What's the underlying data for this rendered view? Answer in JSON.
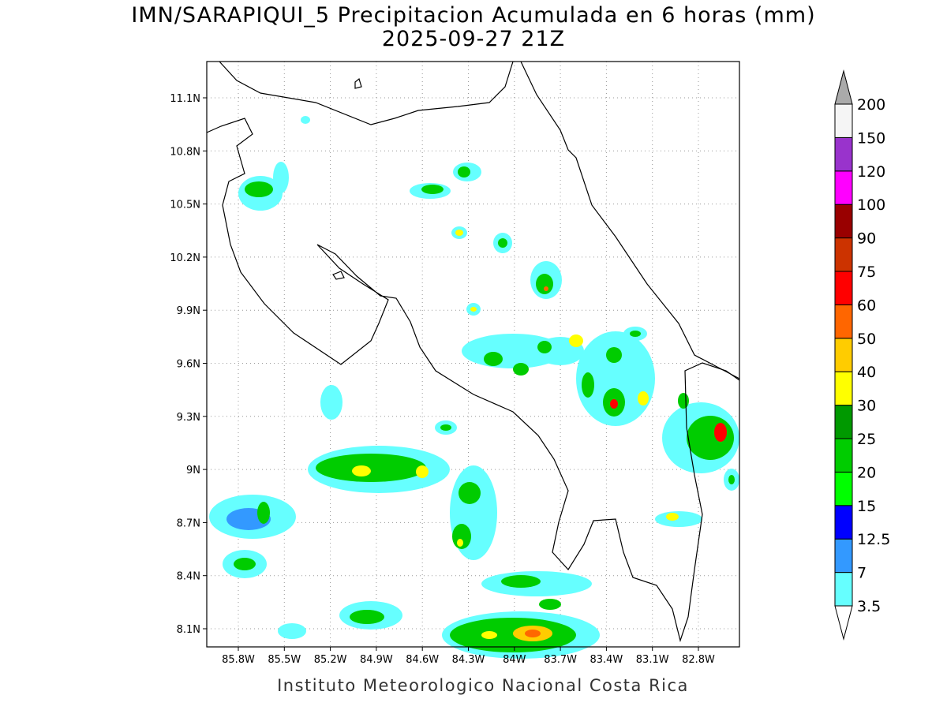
{
  "title": "IMN/SARAPIQUI_5 Precipitacion Acumulada en 6 horas (mm)",
  "subtitle": "2025-09-27 21Z",
  "map": {
    "lon_labels": [
      "85.8W",
      "85.5W",
      "85.2W",
      "84.9W",
      "84.6W",
      "84.3W",
      "84W",
      "83.7W",
      "83.4W",
      "83.1W",
      "82.8W"
    ],
    "lat_labels": [
      "11.1N",
      "10.8N",
      "10.5N",
      "10.2N",
      "9.9N",
      "9.6N",
      "9.3N",
      "9N",
      "8.7N",
      "8.4N",
      "8.1N"
    ]
  },
  "colorbar": {
    "levels": [
      3.5,
      7,
      12.5,
      15,
      20,
      25,
      30,
      40,
      50,
      60,
      75,
      90,
      100,
      120,
      150,
      200
    ],
    "colors": [
      "#ffffff",
      "#66ffff",
      "#3399ff",
      "#0000ff",
      "#00ff00",
      "#00cc00",
      "#009900",
      "#ffff00",
      "#ffcc00",
      "#ff6600",
      "#ff0000",
      "#cc3300",
      "#990000",
      "#ff00ff",
      "#9933cc",
      "#f5f5f5",
      "#aaaaaa"
    ]
  },
  "footer": "Instituto Meteorologico Nacional Costa Rica"
}
